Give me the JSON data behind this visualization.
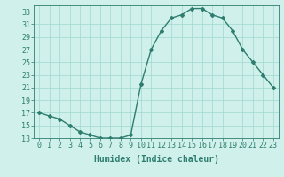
{
  "x": [
    0,
    1,
    2,
    3,
    4,
    5,
    6,
    7,
    8,
    9,
    10,
    11,
    12,
    13,
    14,
    15,
    16,
    17,
    18,
    19,
    20,
    21,
    22,
    23
  ],
  "y": [
    17,
    16.5,
    16,
    15,
    14,
    13.5,
    13,
    13,
    13,
    13.5,
    21.5,
    27,
    30,
    32,
    32.5,
    33.5,
    33.5,
    32.5,
    32,
    30,
    27,
    25,
    23,
    21
  ],
  "line_color": "#2e7d6e",
  "marker": "D",
  "markersize": 2.0,
  "linewidth": 1.0,
  "xlabel": "Humidex (Indice chaleur)",
  "xlim": [
    -0.5,
    23.5
  ],
  "ylim": [
    13,
    34
  ],
  "yticks": [
    13,
    15,
    17,
    19,
    21,
    23,
    25,
    27,
    29,
    31,
    33
  ],
  "xticks": [
    0,
    1,
    2,
    3,
    4,
    5,
    6,
    7,
    8,
    9,
    10,
    11,
    12,
    13,
    14,
    15,
    16,
    17,
    18,
    19,
    20,
    21,
    22,
    23
  ],
  "bg_color": "#cff0eb",
  "grid_color": "#9fd8d0",
  "tick_color": "#2e7d6e",
  "xlabel_fontsize": 7,
  "tick_fontsize": 6
}
